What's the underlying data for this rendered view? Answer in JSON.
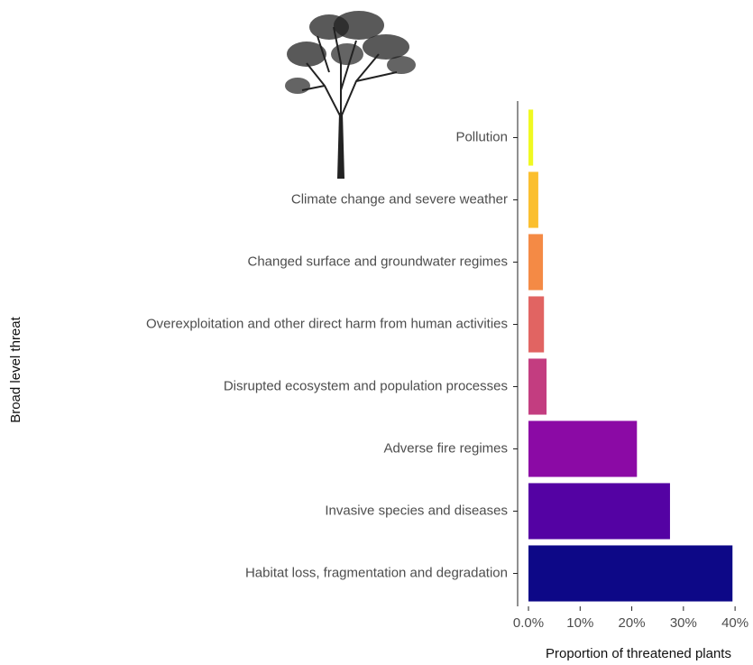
{
  "chart_data": {
    "type": "hbar",
    "x_label": "Proportion of threatened plants",
    "y_label": "Broad level threat",
    "categories": [
      "Pollution",
      "Climate change and severe weather",
      "Changed surface and groundwater regimes",
      "Overexploitation and other direct harm from human activities",
      "Disrupted ecosystem and population processes",
      "Adverse fire regimes",
      "Invasive species and diseases",
      "Habitat loss, fragmentation and degradation"
    ],
    "values": [
      0.9,
      1.9,
      2.8,
      3.0,
      3.5,
      21.0,
      27.4,
      39.5
    ],
    "colors": [
      "#f0f921",
      "#fbbf2e",
      "#f48a45",
      "#e16462",
      "#c33d80",
      "#8b0aa5",
      "#5402a3",
      "#0d0887"
    ],
    "xlim": [
      -2.1,
      41.9
    ],
    "xticks": [
      {
        "value": 0,
        "label": "0.0%"
      },
      {
        "value": 10,
        "label": "10%"
      },
      {
        "value": 20,
        "label": "20%"
      },
      {
        "value": 30,
        "label": "30%"
      },
      {
        "value": 40,
        "label": "40%"
      }
    ],
    "grid": false
  }
}
